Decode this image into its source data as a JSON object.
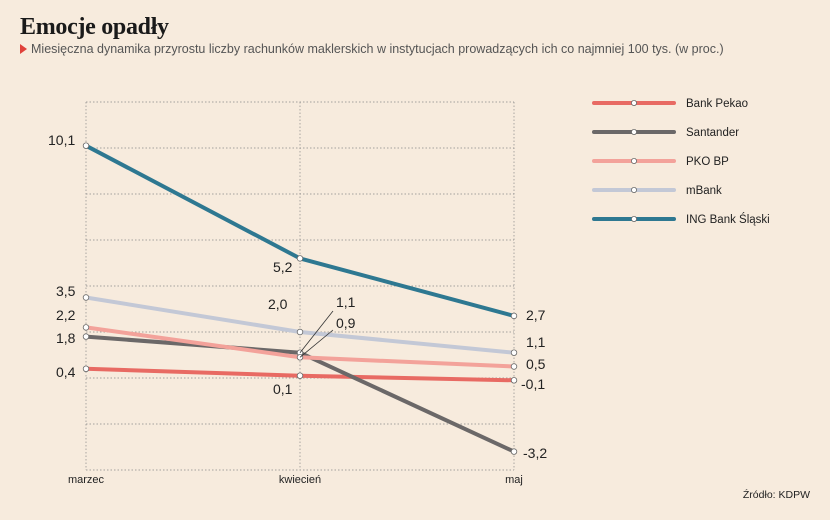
{
  "title": "Emocje opadły",
  "subtitle": "Miesięczna dynamika przyrostu liczby rachunków maklerskich w instytucjach prowadzących ich co najmniej 100 tys. (w proc.)",
  "source": "Źródło: KDPW",
  "chart_data": {
    "type": "line",
    "categories": [
      "marzec",
      "kwiecień",
      "maj"
    ],
    "ylim": [
      -4,
      12
    ],
    "grid": true,
    "legend_position": "right",
    "series": [
      {
        "name": "Bank Pekao",
        "color": "#e86a63",
        "values": [
          0.4,
          0.1,
          -0.1
        ],
        "labels": [
          "0,4",
          "0,1",
          "-0,1"
        ]
      },
      {
        "name": "Santander",
        "color": "#6b6868",
        "values": [
          1.8,
          1.1,
          -3.2
        ],
        "labels": [
          "1,8",
          "1,1",
          "-3,2"
        ]
      },
      {
        "name": "PKO BP",
        "color": "#f3a29a",
        "values": [
          2.2,
          0.9,
          0.5
        ],
        "labels": [
          "2,2",
          "0,9",
          "0,5"
        ]
      },
      {
        "name": "mBank",
        "color": "#c3c8d6",
        "values": [
          3.5,
          2.0,
          1.1
        ],
        "labels": [
          "3,5",
          "2,0",
          "1,1"
        ]
      },
      {
        "name": "ING Bank Śląski",
        "color": "#2e7891",
        "values": [
          10.1,
          5.2,
          2.7
        ],
        "labels": [
          "10,1",
          "5,2",
          "2,7"
        ]
      }
    ]
  }
}
